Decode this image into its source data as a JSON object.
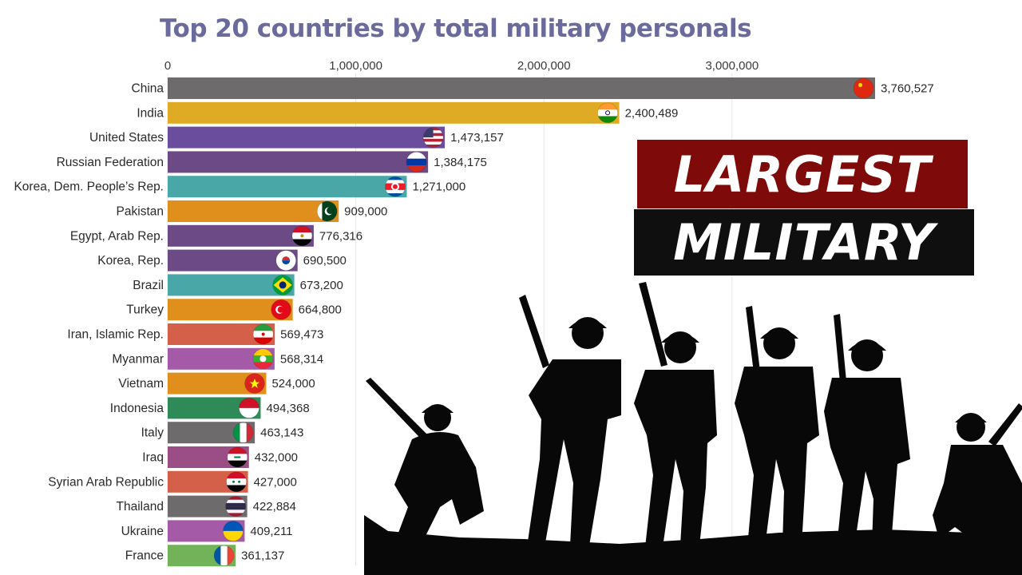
{
  "chart_data": {
    "type": "bar",
    "orientation": "horizontal",
    "title": "Top 20 countries by total military personals",
    "xlim": [
      0,
      3760527
    ],
    "xticks": [
      0,
      1000000,
      2000000,
      3000000
    ],
    "xtick_labels": [
      "0",
      "1,000,000",
      "2,000,000",
      "3,000,000"
    ],
    "grid": true,
    "legend": "none",
    "categories": [
      "China",
      "India",
      "United States",
      "Russian Federation",
      "Korea, Dem. People’s Rep.",
      "Pakistan",
      "Egypt, Arab Rep.",
      "Korea, Rep.",
      "Brazil",
      "Turkey",
      "Iran, Islamic Rep.",
      "Myanmar",
      "Vietnam",
      "Indonesia",
      "Italy",
      "Iraq",
      "Syrian Arab Republic",
      "Thailand",
      "Ukraine",
      "France"
    ],
    "values": [
      3760527,
      2400489,
      1473157,
      1384175,
      1271000,
      909000,
      776316,
      690500,
      673200,
      664800,
      569473,
      568314,
      524000,
      494368,
      463143,
      432000,
      427000,
      422884,
      409211,
      361137
    ],
    "value_labels": [
      "3,760,527",
      "2,400,489",
      "1,473,157",
      "1,384,175",
      "1,271,000",
      "909,000",
      "776,316",
      "690,500",
      "673,200",
      "664,800",
      "569,473",
      "568,314",
      "524,000",
      "494,368",
      "463,143",
      "432,000",
      "427,000",
      "422,884",
      "409,211",
      "361,137"
    ],
    "colors": [
      "#6e6b6c",
      "#e0ab24",
      "#6a4d9c",
      "#6b4a86",
      "#4aa7a7",
      "#e08f1c",
      "#6b4a86",
      "#6b4a86",
      "#4aa7a7",
      "#e08f1c",
      "#d5604a",
      "#a55aa8",
      "#e08f1c",
      "#2e8b57",
      "#6e6b6c",
      "#9b4d86",
      "#d5604a",
      "#6e6b6c",
      "#a55aa8",
      "#72b35a"
    ],
    "flags": [
      "china-flag",
      "india-flag",
      "usa-flag",
      "russia-flag",
      "north-korea-flag",
      "pakistan-flag",
      "egypt-flag",
      "south-korea-flag",
      "brazil-flag",
      "turkey-flag",
      "iran-flag",
      "myanmar-flag",
      "vietnam-flag",
      "indonesia-flag",
      "italy-flag",
      "iraq-flag",
      "syria-flag",
      "thailand-flag",
      "ukraine-flag",
      "france-flag"
    ]
  },
  "banner": {
    "line1": "LARGEST",
    "line2": "MILITARY"
  },
  "illustration": "soldiers-silhouette"
}
